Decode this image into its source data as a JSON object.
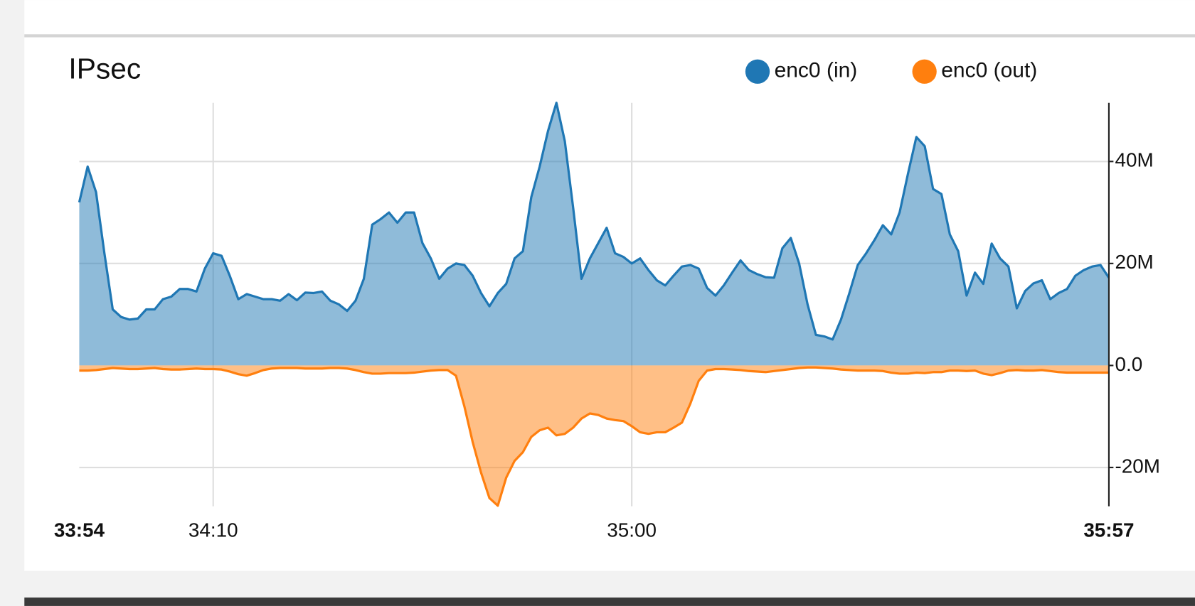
{
  "chart_data": {
    "type": "area",
    "title": "IPsec",
    "legend": "top-right",
    "grid": true,
    "x": [
      2034,
      2035,
      2036,
      2037,
      2038,
      2039,
      2040,
      2041,
      2042,
      2043,
      2044,
      2045,
      2046,
      2047,
      2048,
      2049,
      2050,
      2051,
      2052,
      2053,
      2054,
      2055,
      2056,
      2057,
      2058,
      2059,
      2060,
      2061,
      2062,
      2063,
      2064,
      2065,
      2066,
      2067,
      2068,
      2069,
      2070,
      2071,
      2072,
      2073,
      2074,
      2075,
      2076,
      2077,
      2078,
      2079,
      2080,
      2081,
      2082,
      2083,
      2084,
      2085,
      2086,
      2087,
      2088,
      2089,
      2090,
      2091,
      2092,
      2093,
      2094,
      2095,
      2096,
      2097,
      2098,
      2099,
      2100,
      2101,
      2102,
      2103,
      2104,
      2105,
      2106,
      2107,
      2108,
      2109,
      2110,
      2111,
      2112,
      2113,
      2114,
      2115,
      2116,
      2117,
      2118,
      2119,
      2120,
      2121,
      2122,
      2123,
      2124,
      2125,
      2126,
      2127,
      2128,
      2129,
      2130,
      2131,
      2132,
      2133,
      2134,
      2135,
      2136,
      2137,
      2138,
      2139,
      2140,
      2141,
      2142,
      2143,
      2144,
      2145,
      2146,
      2147,
      2148,
      2149,
      2150,
      2151,
      2152,
      2153,
      2154,
      2155,
      2156,
      2157
    ],
    "xlim": [
      2034,
      2157
    ],
    "xticks": [
      {
        "value": 2034,
        "label": "33:54"
      },
      {
        "value": 2050,
        "label": "34:10"
      },
      {
        "value": 2100,
        "label": "35:00"
      },
      {
        "value": 2157,
        "label": "35:57"
      }
    ],
    "ylim": [
      -27600000,
      51500000
    ],
    "yticks": [
      {
        "value": -20000000,
        "label": "-20M"
      },
      {
        "value": 0,
        "label": "0.0"
      },
      {
        "value": 20000000,
        "label": "20M"
      },
      {
        "value": 40000000,
        "label": "40M"
      }
    ],
    "series": [
      {
        "name": "enc0 (in)",
        "color": "#1f77b4",
        "values": [
          32000000,
          39000000,
          34000000,
          22000000,
          11000000,
          9500000,
          9000000,
          9200000,
          11000000,
          11000000,
          13000000,
          13500000,
          15000000,
          15000000,
          14500000,
          19000000,
          22000000,
          21500000,
          17500000,
          13000000,
          14000000,
          13500000,
          13000000,
          13000000,
          12700000,
          14000000,
          12800000,
          14300000,
          14200000,
          14500000,
          12700000,
          12000000,
          10700000,
          12700000,
          17000000,
          27600000,
          28700000,
          30000000,
          28000000,
          30000000,
          30000000,
          24000000,
          21000000,
          17000000,
          19000000,
          20000000,
          19700000,
          17600000,
          14200000,
          11600000,
          14200000,
          16000000,
          21000000,
          22400000,
          33000000,
          39000000,
          46000000,
          51500000,
          44000000,
          31000000,
          17000000,
          21000000,
          24000000,
          27000000,
          22000000,
          21300000,
          20000000,
          21000000,
          18700000,
          16700000,
          15700000,
          17600000,
          19400000,
          19700000,
          19000000,
          15200000,
          13700000,
          15700000,
          18200000,
          20600000,
          18700000,
          17900000,
          17300000,
          17200000,
          23000000,
          25000000,
          20000000,
          12000000,
          6000000,
          5700000,
          5100000,
          9000000,
          14200000,
          19700000,
          22000000,
          24600000,
          27500000,
          25700000,
          30000000,
          37600000,
          44800000,
          43000000,
          34600000,
          33600000,
          25700000,
          22400000,
          13700000,
          18200000,
          16000000,
          23900000,
          21000000,
          19400000,
          11200000,
          14600000,
          16100000,
          16700000,
          13000000,
          14200000,
          15000000,
          17600000,
          18700000,
          19400000,
          19700000,
          17200000
        ]
      },
      {
        "name": "enc0 (out)",
        "color": "#ff7f0e",
        "values": [
          -1000000,
          -1000000,
          -900000,
          -700000,
          -500000,
          -600000,
          -700000,
          -700000,
          -600000,
          -500000,
          -700000,
          -800000,
          -800000,
          -700000,
          -600000,
          -700000,
          -700000,
          -800000,
          -1200000,
          -1700000,
          -2000000,
          -1500000,
          -900000,
          -600000,
          -500000,
          -500000,
          -500000,
          -600000,
          -600000,
          -600000,
          -500000,
          -500000,
          -600000,
          -900000,
          -1300000,
          -1600000,
          -1600000,
          -1500000,
          -1500000,
          -1500000,
          -1400000,
          -1200000,
          -1000000,
          -900000,
          -900000,
          -2000000,
          -8000000,
          -15000000,
          -21000000,
          -26000000,
          -27500000,
          -22000000,
          -18700000,
          -17000000,
          -14000000,
          -12700000,
          -12200000,
          -13700000,
          -13400000,
          -12200000,
          -10400000,
          -9400000,
          -9700000,
          -10400000,
          -10700000,
          -10900000,
          -11900000,
          -13100000,
          -13400000,
          -13100000,
          -13100000,
          -12200000,
          -11200000,
          -7500000,
          -3000000,
          -1000000,
          -700000,
          -700000,
          -800000,
          -900000,
          -1100000,
          -1200000,
          -1300000,
          -1100000,
          -900000,
          -700000,
          -500000,
          -400000,
          -400000,
          -500000,
          -600000,
          -800000,
          -900000,
          -1000000,
          -1000000,
          -1000000,
          -1100000,
          -1400000,
          -1600000,
          -1600000,
          -1400000,
          -1500000,
          -1300000,
          -1300000,
          -1000000,
          -1000000,
          -1100000,
          -1000000,
          -1600000,
          -1900000,
          -1500000,
          -1000000,
          -900000,
          -1000000,
          -1000000,
          -900000,
          -1100000,
          -1300000,
          -1400000,
          -1400000,
          -1400000,
          -1400000,
          -1400000,
          -1400000
        ]
      }
    ]
  }
}
